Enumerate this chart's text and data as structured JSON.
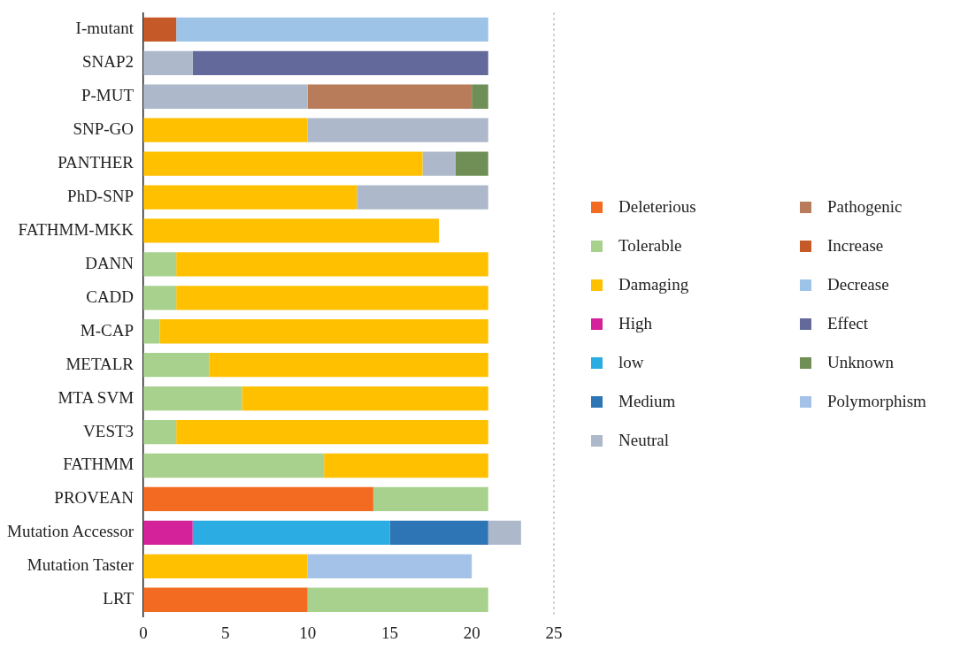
{
  "chart_data": {
    "type": "bar",
    "orientation": "horizontal",
    "stacked": true,
    "categories": [
      "I-mutant",
      "SNAP2",
      "P-MUT",
      "SNP-GO",
      "PANTHER",
      "PhD-SNP",
      "FATHMM-MKK",
      "DANN",
      "CADD",
      "M-CAP",
      "METALR",
      "MTA SVM",
      "VEST3",
      "FATHMM",
      "PROVEAN",
      "Mutation Accessor",
      "Mutation Taster",
      "LRT"
    ],
    "series": [
      {
        "name": "Deleterious",
        "color": "#f26b21",
        "values": [
          null,
          null,
          null,
          null,
          null,
          null,
          null,
          null,
          null,
          null,
          null,
          null,
          null,
          null,
          14,
          null,
          null,
          10
        ]
      },
      {
        "name": "Tolerable",
        "color": "#a9d18e",
        "values": [
          null,
          null,
          null,
          null,
          null,
          null,
          null,
          2,
          2,
          1,
          4,
          6,
          2,
          11,
          7,
          null,
          null,
          11
        ]
      },
      {
        "name": "Damaging",
        "color": "#ffc000",
        "values": [
          null,
          null,
          null,
          10,
          17,
          13,
          18,
          19,
          19,
          20,
          17,
          15,
          19,
          10,
          null,
          null,
          10,
          null
        ]
      },
      {
        "name": "High",
        "color": "#d4229a",
        "values": [
          null,
          null,
          null,
          null,
          null,
          null,
          null,
          null,
          null,
          null,
          null,
          null,
          null,
          null,
          null,
          3,
          null,
          null
        ]
      },
      {
        "name": "low",
        "color": "#2bace2",
        "values": [
          null,
          null,
          null,
          null,
          null,
          null,
          null,
          null,
          null,
          null,
          null,
          null,
          null,
          null,
          null,
          12,
          null,
          null
        ]
      },
      {
        "name": "Medium",
        "color": "#2e75b6",
        "values": [
          null,
          null,
          null,
          null,
          null,
          null,
          null,
          null,
          null,
          null,
          null,
          null,
          null,
          null,
          null,
          6,
          null,
          null
        ]
      },
      {
        "name": "Neutral",
        "color": "#adb9ca",
        "values": [
          null,
          3,
          10,
          11,
          2,
          8,
          null,
          null,
          null,
          null,
          null,
          null,
          null,
          null,
          null,
          2,
          null,
          null
        ]
      },
      {
        "name": "Pathogenic",
        "color": "#b87c5a",
        "values": [
          null,
          null,
          10,
          null,
          null,
          null,
          null,
          null,
          null,
          null,
          null,
          null,
          null,
          null,
          null,
          null,
          null,
          null
        ]
      },
      {
        "name": "Increase",
        "color": "#c55a28",
        "values": [
          2,
          null,
          null,
          null,
          null,
          null,
          null,
          null,
          null,
          null,
          null,
          null,
          null,
          null,
          null,
          null,
          null,
          null
        ]
      },
      {
        "name": "Decrease",
        "color": "#9dc3e6",
        "values": [
          19,
          null,
          null,
          null,
          null,
          null,
          null,
          null,
          null,
          null,
          null,
          null,
          null,
          null,
          null,
          null,
          null,
          null
        ]
      },
      {
        "name": "Effect",
        "color": "#636a9b",
        "values": [
          null,
          18,
          null,
          null,
          null,
          null,
          null,
          null,
          null,
          null,
          null,
          null,
          null,
          null,
          null,
          null,
          null,
          null
        ]
      },
      {
        "name": "Unknown",
        "color": "#6f8f56",
        "values": [
          null,
          null,
          1,
          null,
          2,
          null,
          null,
          null,
          null,
          null,
          null,
          null,
          null,
          null,
          null,
          null,
          null,
          null
        ]
      },
      {
        "name": "Polymorphism",
        "color": "#a4c2e8",
        "values": [
          null,
          null,
          null,
          null,
          null,
          null,
          null,
          null,
          null,
          null,
          null,
          null,
          null,
          null,
          null,
          null,
          10,
          null
        ]
      }
    ],
    "xlim": [
      0,
      25
    ],
    "xticks": [
      0,
      5,
      10,
      15,
      20,
      25
    ],
    "ref_lines": [
      {
        "axis": "x",
        "value": 25,
        "color": "#999999",
        "line_style": "dotted"
      }
    ],
    "grid": false,
    "legend": "right"
  }
}
